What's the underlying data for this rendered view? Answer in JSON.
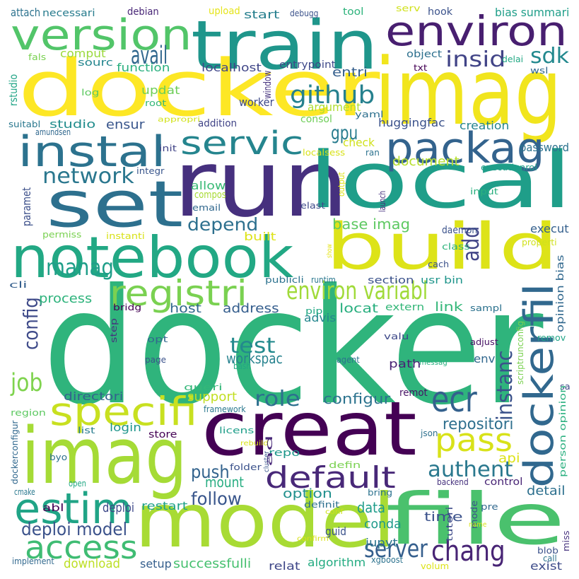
{
  "words": [
    {
      "text": "docker",
      "color": "#2fb47c"
    },
    {
      "text": "run",
      "color": "#46307e"
    },
    {
      "text": "imag",
      "color": "#f1e51d"
    },
    {
      "text": "model",
      "color": "#a8db34"
    },
    {
      "text": "docker",
      "color": "#fde725"
    },
    {
      "text": "file",
      "color": "#4ac16d"
    },
    {
      "text": "creat",
      "color": "#440154"
    },
    {
      "text": "imag",
      "color": "#a5db36"
    },
    {
      "text": "build",
      "color": "#dde318"
    },
    {
      "text": "local",
      "color": "#1f9e89"
    },
    {
      "text": "notebook",
      "color": "#22a884"
    },
    {
      "text": "set",
      "color": "#2d708e"
    },
    {
      "text": "train",
      "color": "#1f968b"
    },
    {
      "text": "environ",
      "color": "#481f70"
    },
    {
      "text": "version",
      "color": "#52c569"
    },
    {
      "text": "dockerfil",
      "color": "#31688e"
    },
    {
      "text": "instal",
      "color": "#2c728e"
    },
    {
      "text": "packag",
      "color": "#33638d"
    },
    {
      "text": "estim",
      "color": "#20a486"
    },
    {
      "text": "specifi",
      "color": "#c8e020"
    },
    {
      "text": "access",
      "color": "#3fbc73"
    },
    {
      "text": "registri",
      "color": "#7ad151"
    },
    {
      "text": "ecr",
      "color": "#34618d"
    },
    {
      "text": "pass",
      "color": "#d8e219"
    },
    {
      "text": "default",
      "color": "#482878"
    },
    {
      "text": "servic",
      "color": "#25858e"
    },
    {
      "text": "server",
      "color": "#355f8d"
    },
    {
      "text": "chang",
      "color": "#482475"
    },
    {
      "text": "environ variabl",
      "color": "#a0da39"
    },
    {
      "text": "authent",
      "color": "#2a788e"
    },
    {
      "text": "instanc",
      "color": "#3b528b"
    },
    {
      "text": "github",
      "color": "#26818e"
    },
    {
      "text": "config",
      "color": "#3e4a89"
    },
    {
      "text": "job",
      "color": "#7fd34e"
    },
    {
      "text": "role",
      "color": "#2d708e"
    },
    {
      "text": "test",
      "color": "#238a8d"
    },
    {
      "text": "avail",
      "color": "#31688e"
    },
    {
      "text": "add",
      "color": "#414487"
    },
    {
      "text": "manag",
      "color": "#1f9e89"
    },
    {
      "text": "gpu",
      "color": "#287c8e"
    },
    {
      "text": "sdk",
      "color": "#23898e"
    },
    {
      "text": "depend",
      "color": "#2d708e"
    },
    {
      "text": "deploi model",
      "color": "#3b528b"
    },
    {
      "text": "follow",
      "color": "#39568c"
    },
    {
      "text": "network",
      "color": "#2a778e"
    },
    {
      "text": "insid",
      "color": "#414487"
    },
    {
      "text": "push",
      "color": "#33638d"
    },
    {
      "text": "mount",
      "color": "#27ad81"
    },
    {
      "text": "conda",
      "color": "#1f9a8a"
    },
    {
      "text": "repositori",
      "color": "#2e6f8e"
    },
    {
      "text": "data",
      "color": "#1e9c89"
    },
    {
      "text": "option",
      "color": "#21908d"
    },
    {
      "text": "workspac",
      "color": "#26828e"
    },
    {
      "text": "base imag",
      "color": "#5ec962"
    },
    {
      "text": "configur",
      "color": "#2c738e"
    },
    {
      "text": "time",
      "color": "#3b528b"
    },
    {
      "text": "process",
      "color": "#2eb37c"
    },
    {
      "text": "host",
      "color": "#31688e"
    },
    {
      "text": "address",
      "color": "#355e8d"
    },
    {
      "text": "locat",
      "color": "#29af7f"
    },
    {
      "text": "link",
      "color": "#35b779"
    },
    {
      "text": "support",
      "color": "#c2df23"
    },
    {
      "text": "successfulli",
      "color": "#46c06f"
    },
    {
      "text": "document",
      "color": "#b5de2b"
    },
    {
      "text": "argument",
      "color": "#b0dd2f"
    },
    {
      "text": "huggingfac",
      "color": "#3b528b"
    },
    {
      "text": "ensur",
      "color": "#39568c"
    },
    {
      "text": "studio",
      "color": "#228d8d"
    },
    {
      "text": "download",
      "color": "#bddf26"
    },
    {
      "text": "detail",
      "color": "#2d708e"
    },
    {
      "text": "entri",
      "color": "#355f8d"
    },
    {
      "text": "comput",
      "color": "#9bd93c"
    },
    {
      "text": "function",
      "color": "#2ab07f"
    },
    {
      "text": "localhost",
      "color": "#404688"
    },
    {
      "text": "updat",
      "color": "#6ece58"
    },
    {
      "text": "check",
      "color": "#d0e11c"
    },
    {
      "text": "creation",
      "color": "#25848e"
    },
    {
      "text": "api",
      "color": "#dde318"
    },
    {
      "text": "deploi",
      "color": "#3e4989"
    },
    {
      "text": "jupyt",
      "color": "#2b758e"
    },
    {
      "text": "login",
      "color": "#1f958b"
    },
    {
      "text": "directori",
      "color": "#33638d"
    },
    {
      "text": "allow",
      "color": "#3aba76"
    },
    {
      "text": "paramet",
      "color": "#3c4f8a"
    },
    {
      "text": "execut",
      "color": "#34608d"
    },
    {
      "text": "restart",
      "color": "#1fa188"
    },
    {
      "text": "setup",
      "color": "#355f8d"
    },
    {
      "text": "exist",
      "color": "#3e4c8a"
    },
    {
      "text": "algorithm",
      "color": "#25ac82"
    },
    {
      "text": "relat",
      "color": "#3f4788"
    },
    {
      "text": "guid",
      "color": "#3b528b"
    },
    {
      "text": "repo",
      "color": "#1f988b"
    },
    {
      "text": "built",
      "color": "#dde318"
    },
    {
      "text": "password",
      "color": "#2c728e"
    },
    {
      "text": "advis",
      "color": "#24868e"
    },
    {
      "text": "path",
      "color": "#482475"
    },
    {
      "text": "env",
      "color": "#31688e"
    },
    {
      "text": "remot",
      "color": "#471365"
    },
    {
      "text": "daemon",
      "color": "#3b528b"
    },
    {
      "text": "bias summari",
      "color": "#1f9e89"
    },
    {
      "text": "start",
      "color": "#277f8e"
    },
    {
      "text": "upload",
      "color": "#e5e419"
    },
    {
      "text": "debian",
      "color": "#482677"
    },
    {
      "text": "tool",
      "color": "#2eb37c"
    },
    {
      "text": "serv",
      "color": "#d0e11c"
    },
    {
      "text": "hook",
      "color": "#3b528b"
    },
    {
      "text": "attach",
      "color": "#2c728e"
    },
    {
      "text": "necessari",
      "color": "#287c8e"
    },
    {
      "text": "debugg",
      "color": "#3b528b"
    },
    {
      "text": "sourc",
      "color": "#24868e"
    },
    {
      "text": "entrypoint",
      "color": "#3e4989"
    },
    {
      "text": "object",
      "color": "#2d708e"
    },
    {
      "text": "delai",
      "color": "#22a884"
    },
    {
      "text": "wsl",
      "color": "#31688e"
    },
    {
      "text": "txt",
      "color": "#440154"
    },
    {
      "text": "fals",
      "color": "#7ad151"
    },
    {
      "text": "rstudio",
      "color": "#20a486"
    },
    {
      "text": "log",
      "color": "#5ec962"
    },
    {
      "text": "root",
      "color": "#35b779"
    },
    {
      "text": "window",
      "color": "#46327e"
    },
    {
      "text": "worker",
      "color": "#3e4a89"
    },
    {
      "text": "consol",
      "color": "#6ece58"
    },
    {
      "text": "yaml",
      "color": "#2d708e"
    },
    {
      "text": "addition",
      "color": "#414487"
    },
    {
      "text": "appropri",
      "color": "#d2e21b"
    },
    {
      "text": "suitabl",
      "color": "#2a788e"
    },
    {
      "text": "amundsen",
      "color": "#31688e"
    },
    {
      "text": "init",
      "color": "#414487"
    },
    {
      "text": "localsess",
      "color": "#d8e219"
    },
    {
      "text": "ran",
      "color": "#2c728e"
    },
    {
      "text": "integr",
      "color": "#39568c"
    },
    {
      "text": "executionrol",
      "color": "#1f9e89"
    },
    {
      "text": "launch",
      "color": "#46307e"
    },
    {
      "text": "input",
      "color": "#2ab07f"
    },
    {
      "text": "output",
      "color": "#dde318"
    },
    {
      "text": "compos",
      "color": "#a8db34"
    },
    {
      "text": "email",
      "color": "#31688e"
    },
    {
      "text": "elast",
      "color": "#3e4a89"
    },
    {
      "text": "permiss",
      "color": "#7ad151"
    },
    {
      "text": "instanti",
      "color": "#d8e219"
    },
    {
      "text": "show",
      "color": "#e5e419"
    },
    {
      "text": "properti",
      "color": "#d0e11c"
    },
    {
      "text": "class",
      "color": "#2eb37c"
    },
    {
      "text": "cach",
      "color": "#3b528b"
    },
    {
      "text": "publicli",
      "color": "#2c728e"
    },
    {
      "text": "runtim",
      "color": "#2a788e"
    },
    {
      "text": "section",
      "color": "#3b528b"
    },
    {
      "text": "usr bin",
      "color": "#1f958b"
    },
    {
      "text": "cli",
      "color": "#355f8d"
    },
    {
      "text": "bridg",
      "color": "#440154"
    },
    {
      "text": "pip",
      "color": "#22a884"
    },
    {
      "text": "extern",
      "color": "#35b779"
    },
    {
      "text": "sampl",
      "color": "#2c728e"
    },
    {
      "text": "opinion bias",
      "color": "#31688e"
    },
    {
      "text": "step",
      "color": "#46327e"
    },
    {
      "text": "valu",
      "color": "#3e4989"
    },
    {
      "text": "adjust",
      "color": "#471365"
    },
    {
      "text": "remov",
      "color": "#20a486"
    },
    {
      "text": "opt",
      "color": "#31688e"
    },
    {
      "text": "bash",
      "color": "#22a884"
    },
    {
      "text": "agent",
      "color": "#2c728e"
    },
    {
      "text": "messag",
      "color": "#2ab07f"
    },
    {
      "text": "scriptrunconfig",
      "color": "#7ad151"
    },
    {
      "text": "page",
      "color": "#3b528b"
    },
    {
      "text": "queri",
      "color": "#35b779"
    },
    {
      "text": "framework",
      "color": "#2a788e"
    },
    {
      "text": "region",
      "color": "#5ec962"
    },
    {
      "text": "sa",
      "color": "#3e4989"
    },
    {
      "text": "person opinion",
      "color": "#2ab07f"
    },
    {
      "text": "dockerconfigur",
      "color": "#31688e"
    },
    {
      "text": "list",
      "color": "#287c8e"
    },
    {
      "text": "store",
      "color": "#440154"
    },
    {
      "text": "licens",
      "color": "#1f9e89"
    },
    {
      "text": "rebuild",
      "color": "#d8e219"
    },
    {
      "text": "json",
      "color": "#2d708e"
    },
    {
      "text": "cluster",
      "color": "#39568c"
    },
    {
      "text": "ad",
      "color": "#482878"
    },
    {
      "text": "byo",
      "color": "#2d708e"
    },
    {
      "text": "folder",
      "color": "#3b528b"
    },
    {
      "text": "defin",
      "color": "#7ad151"
    },
    {
      "text": "control",
      "color": "#482475"
    },
    {
      "text": "backend",
      "color": "#46327e"
    },
    {
      "text": "cmake",
      "color": "#2a788e"
    },
    {
      "text": "open",
      "color": "#22a884"
    },
    {
      "text": "bring",
      "color": "#2c728e"
    },
    {
      "text": "abl",
      "color": "#440154"
    },
    {
      "text": "definit",
      "color": "#2d708e"
    },
    {
      "text": "conf",
      "color": "#d0e11c"
    },
    {
      "text": "pre",
      "color": "#31688e"
    },
    {
      "text": "mode",
      "color": "#3b528b"
    },
    {
      "text": "tutori",
      "color": "#3e4a89"
    },
    {
      "text": "name",
      "color": "#d8e219"
    },
    {
      "text": "miss",
      "color": "#46327e"
    },
    {
      "text": "blob",
      "color": "#3b528b"
    },
    {
      "text": "call",
      "color": "#2c728e"
    },
    {
      "text": "implement",
      "color": "#31688e"
    },
    {
      "text": "confirm",
      "color": "#d8e219"
    },
    {
      "text": "xgboost",
      "color": "#2c728e"
    },
    {
      "text": "volum",
      "color": "#dde318"
    }
  ]
}
